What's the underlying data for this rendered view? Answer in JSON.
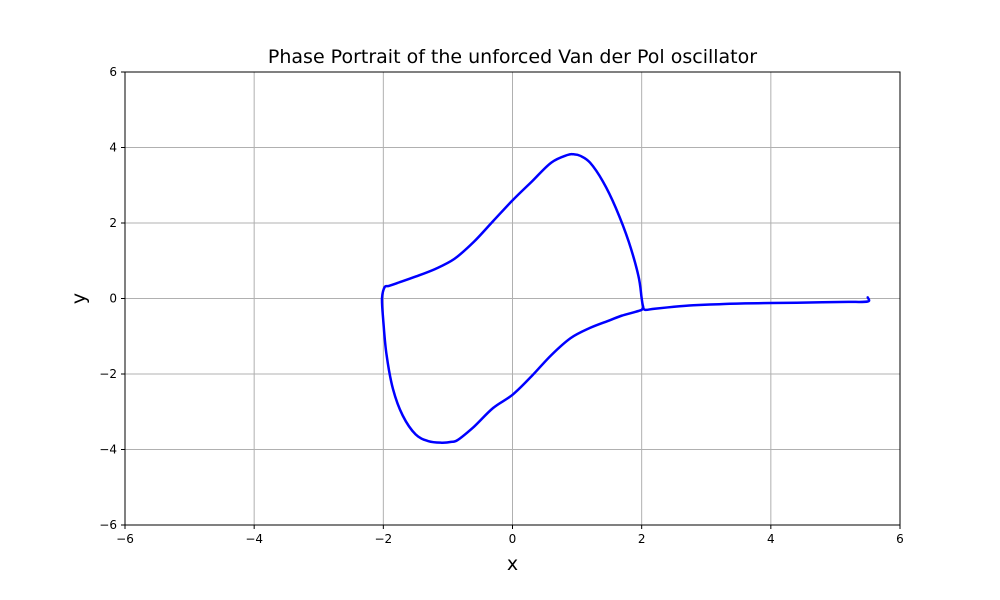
{
  "chart_data": {
    "type": "line",
    "title": "Phase Portrait of the unforced Van der Pol oscillator",
    "xlabel": "x",
    "ylabel": "y",
    "xlim": [
      -6,
      6
    ],
    "ylim": [
      -6,
      6
    ],
    "xticks": [
      -6,
      -4,
      -2,
      0,
      2,
      4,
      6
    ],
    "yticks": [
      -6,
      -4,
      -2,
      0,
      2,
      4,
      6
    ],
    "xtick_labels": [
      "−6",
      "−4",
      "−2",
      "0",
      "2",
      "4",
      "6"
    ],
    "ytick_labels": [
      "−6",
      "−4",
      "−2",
      "0",
      "2",
      "4",
      "6"
    ],
    "grid": true,
    "series": [
      {
        "color": "#0000ff",
        "x": [
          5.5,
          5.5,
          5.2,
          4.8,
          4.4,
          4.0,
          3.6,
          3.2,
          2.8,
          2.5,
          2.2,
          2.05,
          2.02,
          2.0,
          1.95,
          1.8,
          1.6,
          1.4,
          1.2,
          1.05,
          0.95,
          0.85,
          0.6,
          0.3,
          0.0,
          -0.3,
          -0.6,
          -0.9,
          -1.2,
          -1.5,
          -1.8,
          -1.92,
          -1.98,
          -2.02,
          -2.0,
          -1.95,
          -1.85,
          -1.7,
          -1.5,
          -1.3,
          -1.1,
          -0.95,
          -0.85,
          -0.6,
          -0.3,
          0.0,
          0.3,
          0.6,
          0.9,
          1.2,
          1.5,
          1.7,
          1.85,
          1.95,
          2.0,
          2.02
        ],
        "y": [
          0.03,
          -0.08,
          -0.09,
          -0.1,
          -0.11,
          -0.12,
          -0.13,
          -0.15,
          -0.18,
          -0.22,
          -0.27,
          -0.3,
          -0.2,
          0.0,
          0.6,
          1.5,
          2.4,
          3.1,
          3.6,
          3.78,
          3.82,
          3.8,
          3.6,
          3.1,
          2.6,
          2.05,
          1.5,
          1.05,
          0.78,
          0.58,
          0.4,
          0.33,
          0.3,
          0.0,
          -0.6,
          -1.5,
          -2.4,
          -3.1,
          -3.6,
          -3.78,
          -3.82,
          -3.8,
          -3.75,
          -3.4,
          -2.9,
          -2.55,
          -2.05,
          -1.5,
          -1.05,
          -0.78,
          -0.58,
          -0.45,
          -0.38,
          -0.33,
          -0.3,
          -0.25
        ]
      }
    ]
  }
}
